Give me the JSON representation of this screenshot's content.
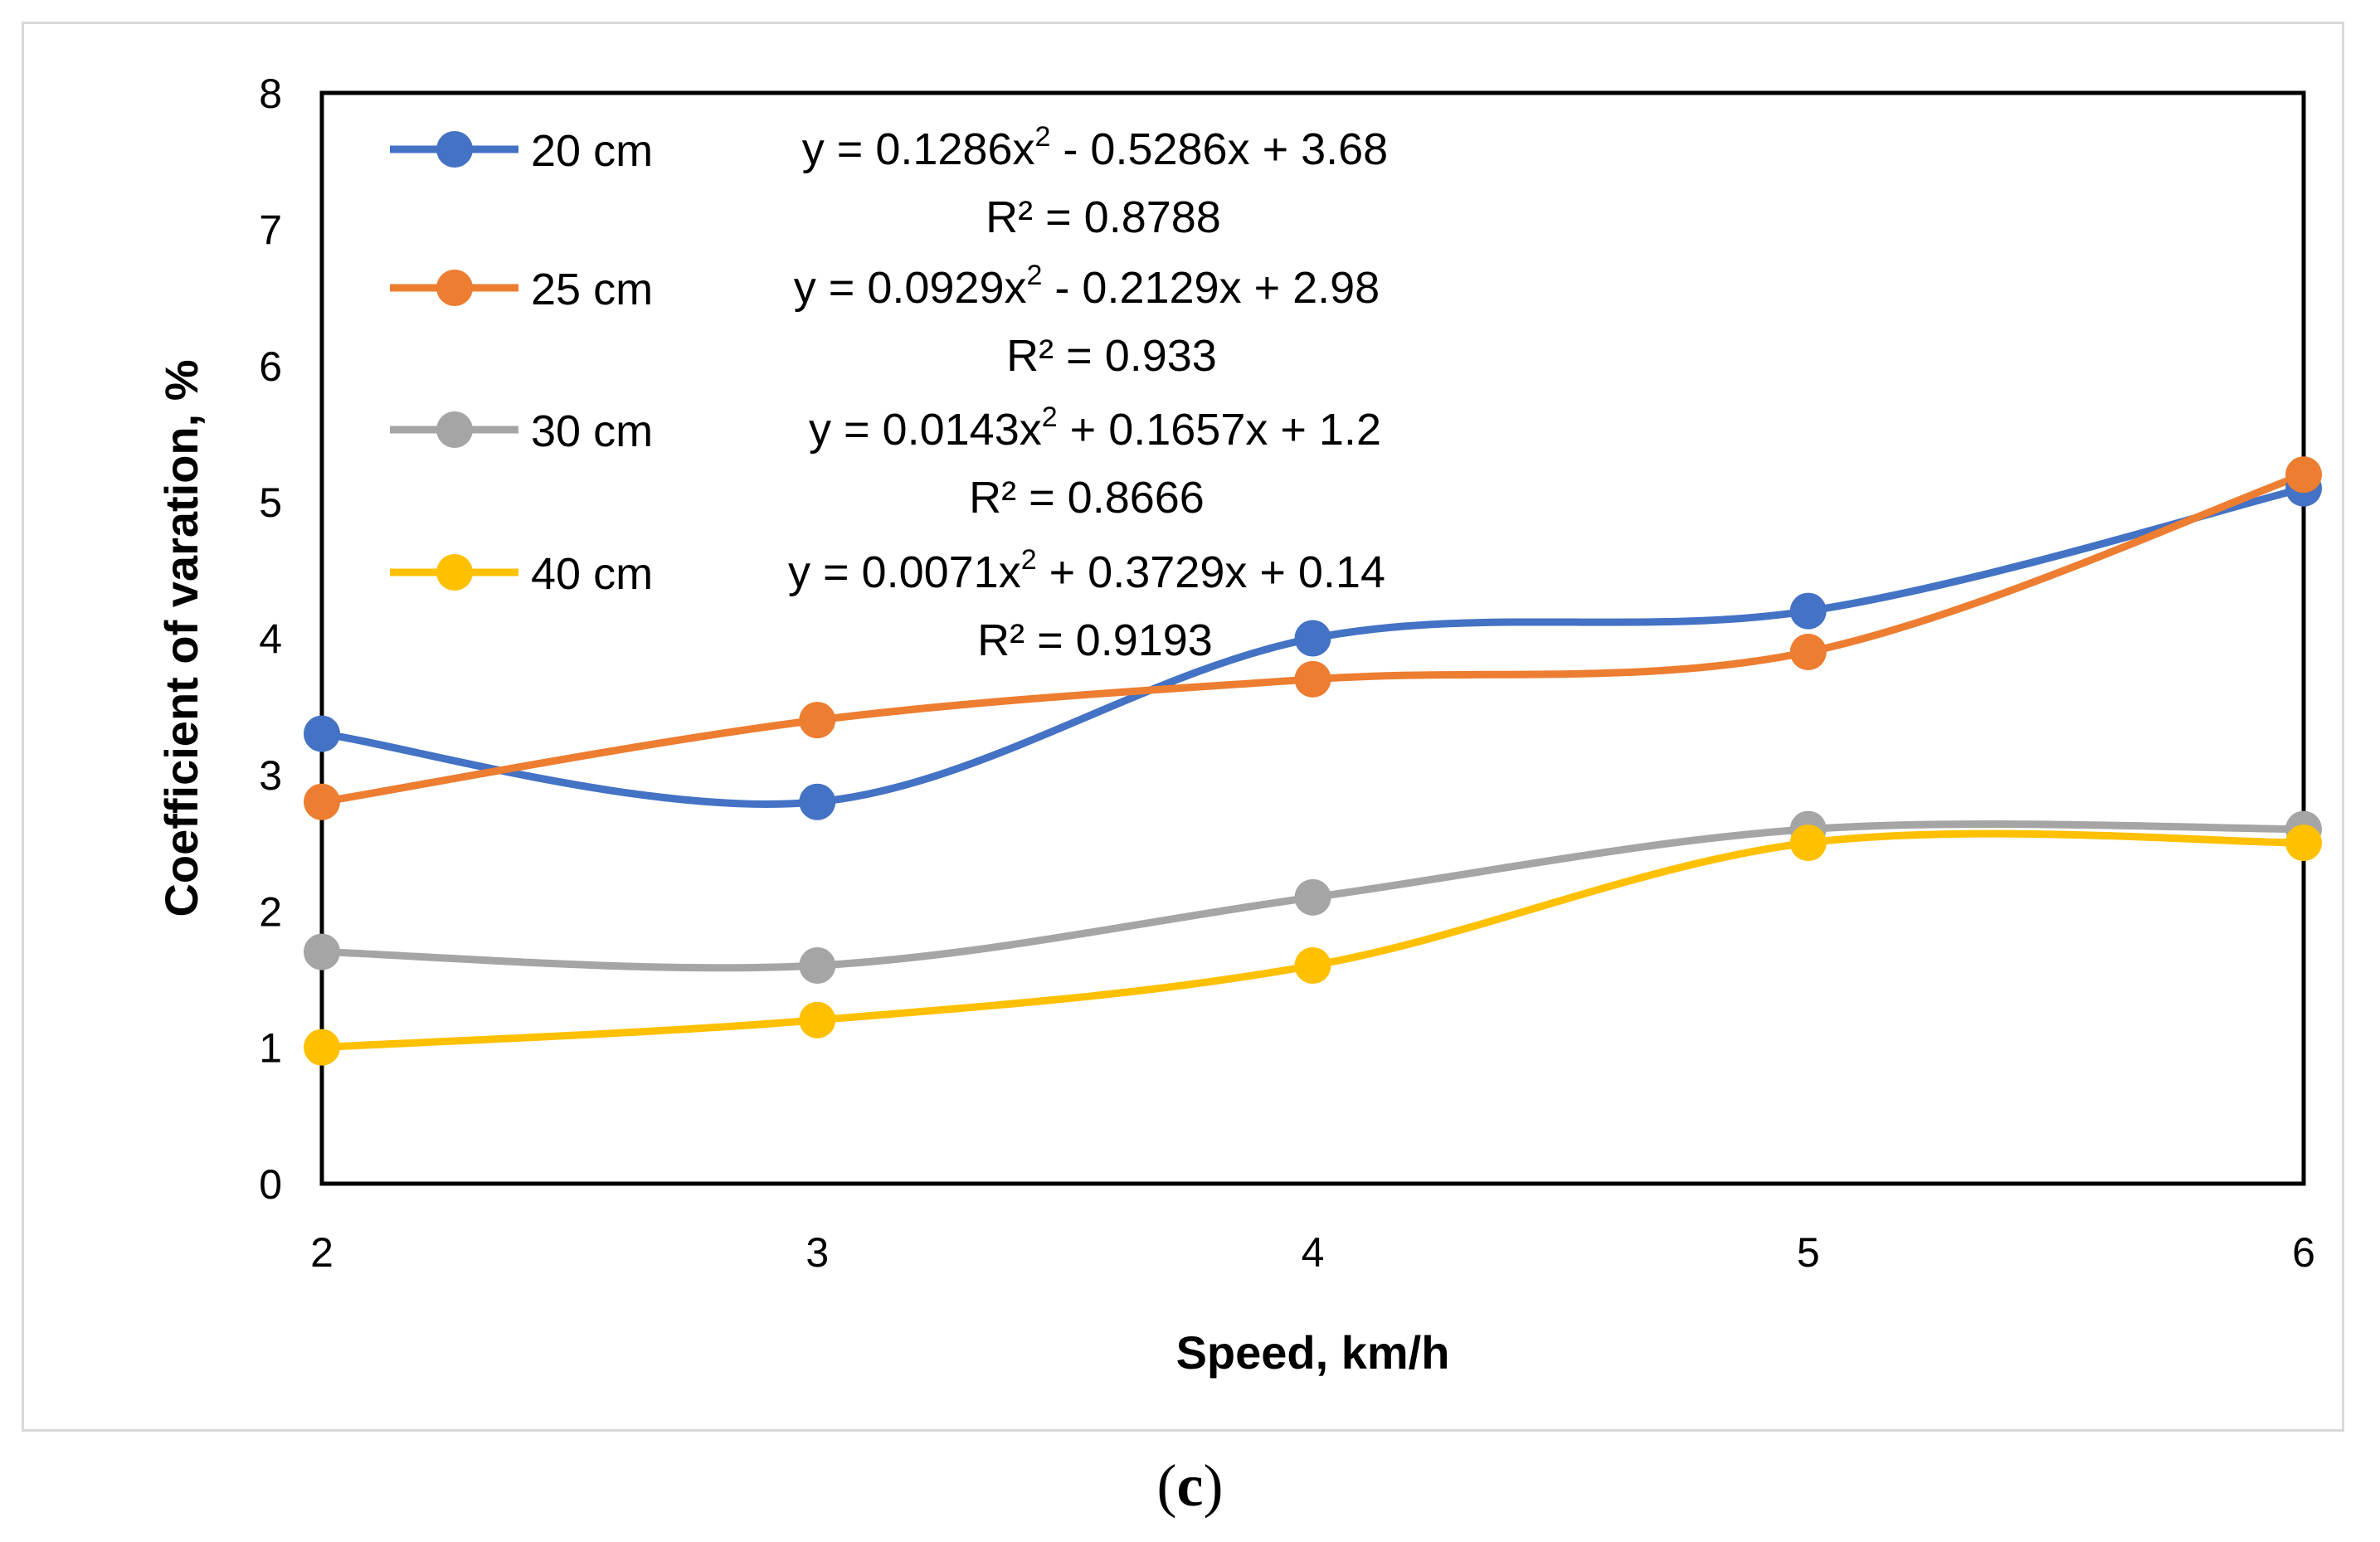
{
  "caption": {
    "open": "(",
    "letter": "c",
    "close": ")"
  },
  "chart_data": {
    "type": "line",
    "smooth": true,
    "title": "",
    "xlabel": "Speed, km/h",
    "ylabel": "Coefficient of varation, %",
    "x": [
      2,
      3,
      4,
      5,
      6
    ],
    "xlim": [
      2,
      6
    ],
    "ylim": [
      0,
      8
    ],
    "xticks": [
      "2",
      "3",
      "4",
      "5",
      "6"
    ],
    "yticks": [
      "0",
      "1",
      "2",
      "3",
      "4",
      "5",
      "6",
      "7",
      "8"
    ],
    "grid": false,
    "legend_position": "top-left",
    "series": [
      {
        "name": "20 cm",
        "color": "#4472c4",
        "values": [
          3.3,
          2.8,
          4.0,
          4.2,
          5.1
        ],
        "equation_lhs": "y = 0.1286x",
        "equation_exp": "2",
        "equation_rhs": " - 0.5286x + 3.68",
        "r2": "R² = 0.8788"
      },
      {
        "name": "25 cm",
        "color": "#ed7d31",
        "values": [
          2.8,
          3.4,
          3.7,
          3.9,
          5.2
        ],
        "equation_lhs": "y = 0.0929x",
        "equation_exp": "2",
        "equation_rhs": " - 0.2129x + 2.98",
        "r2": "R² = 0.933"
      },
      {
        "name": "30 cm",
        "color": "#a5a5a5",
        "values": [
          1.7,
          1.6,
          2.1,
          2.6,
          2.6
        ],
        "equation_lhs": "y = 0.0143x",
        "equation_exp": "2",
        "equation_rhs": " + 0.1657x + 1.2",
        "r2": "R² = 0.8666"
      },
      {
        "name": "40 cm",
        "color": "#ffc000",
        "values": [
          1.0,
          1.2,
          1.6,
          2.5,
          2.5
        ],
        "equation_lhs": "y = 0.0071x",
        "equation_exp": "2",
        "equation_rhs": " + 0.3729x + 0.14",
        "r2": "R² = 0.9193"
      }
    ]
  }
}
